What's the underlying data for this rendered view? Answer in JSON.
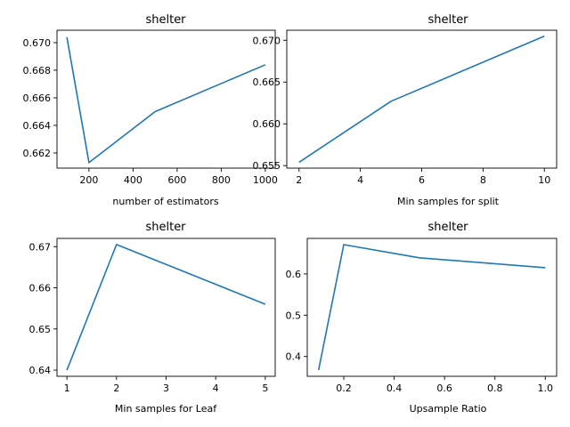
{
  "chart_data": [
    {
      "type": "line",
      "title": "shelter",
      "xlabel": "number of estimators",
      "ylabel": "",
      "x": [
        100,
        200,
        500,
        1000
      ],
      "series": [
        {
          "values": [
            0.6704,
            0.6613,
            0.665,
            0.6684
          ]
        }
      ],
      "xlim": [
        55,
        1045
      ],
      "ylim": [
        0.6609,
        0.6709
      ],
      "xticks": [
        200,
        400,
        600,
        800,
        1000
      ],
      "xtick_labels": [
        "200",
        "400",
        "600",
        "800",
        "1000"
      ],
      "yticks": [
        0.662,
        0.664,
        0.666,
        0.668,
        0.67
      ],
      "ytick_labels": [
        "0.662",
        "0.664",
        "0.666",
        "0.668",
        "0.670"
      ],
      "grid": false,
      "color": "#1f77b4"
    },
    {
      "type": "line",
      "title": "shelter",
      "xlabel": "Min samples for split",
      "ylabel": "",
      "x": [
        2,
        5,
        10
      ],
      "series": [
        {
          "values": [
            0.6554,
            0.6627,
            0.6705
          ]
        }
      ],
      "xlim": [
        1.6,
        10.4
      ],
      "ylim": [
        0.6547,
        0.6712
      ],
      "xticks": [
        2,
        4,
        6,
        8,
        10
      ],
      "xtick_labels": [
        "2",
        "4",
        "6",
        "8",
        "10"
      ],
      "yticks": [
        0.655,
        0.66,
        0.665,
        0.67
      ],
      "ytick_labels": [
        "0.655",
        "0.660",
        "0.665",
        "0.670"
      ],
      "grid": false,
      "color": "#1f77b4"
    },
    {
      "type": "line",
      "title": "shelter",
      "xlabel": "Min samples for Leaf",
      "ylabel": "",
      "x": [
        1,
        2,
        5
      ],
      "series": [
        {
          "values": [
            0.64,
            0.6705,
            0.656
          ]
        }
      ],
      "xlim": [
        0.8,
        5.2
      ],
      "ylim": [
        0.6385,
        0.672
      ],
      "xticks": [
        1,
        2,
        3,
        4,
        5
      ],
      "xtick_labels": [
        "1",
        "2",
        "3",
        "4",
        "5"
      ],
      "yticks": [
        0.64,
        0.65,
        0.66,
        0.67
      ],
      "ytick_labels": [
        "0.64",
        "0.65",
        "0.66",
        "0.67"
      ],
      "grid": false,
      "color": "#1f77b4"
    },
    {
      "type": "line",
      "title": "shelter",
      "xlabel": "Upsample Ratio",
      "ylabel": "",
      "x": [
        0.1,
        0.2,
        0.5,
        1.0
      ],
      "series": [
        {
          "values": [
            0.367,
            0.671,
            0.639,
            0.615
          ]
        }
      ],
      "xlim": [
        0.055,
        1.045
      ],
      "ylim": [
        0.352,
        0.686
      ],
      "xticks": [
        0.2,
        0.4,
        0.6,
        0.8,
        1.0
      ],
      "xtick_labels": [
        "0.2",
        "0.4",
        "0.6",
        "0.8",
        "1.0"
      ],
      "yticks": [
        0.4,
        0.5,
        0.6
      ],
      "ytick_labels": [
        "0.4",
        "0.5",
        "0.6"
      ],
      "grid": false,
      "color": "#1f77b4"
    }
  ]
}
